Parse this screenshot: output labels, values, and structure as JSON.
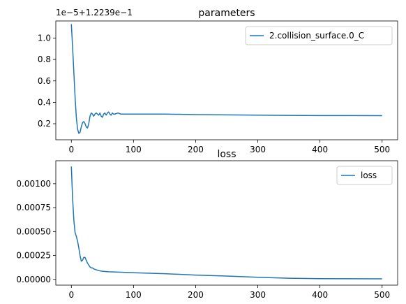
{
  "chart_data": [
    {
      "type": "line",
      "title": "parameters",
      "offset_label": "1e−5+1.2239e−1",
      "xlabel": "",
      "ylabel": "",
      "xlim": [
        -25,
        525
      ],
      "ylim": [
        0.05,
        1.16
      ],
      "x_ticks": [
        0,
        100,
        200,
        300,
        400,
        500
      ],
      "x_tick_labels": [
        "0",
        "100",
        "200",
        "300",
        "400",
        "500"
      ],
      "y_ticks": [
        0.2,
        0.4,
        0.6,
        0.8,
        1.0
      ],
      "y_tick_labels": [
        "0.2",
        "0.4",
        "0.6",
        "0.8",
        "1.0"
      ],
      "legend_position": "top-right",
      "grid": false,
      "series": [
        {
          "name": "2.collision_surface.0_C",
          "color": "#1f77b4",
          "x": [
            0,
            2,
            4,
            6,
            8,
            10,
            12,
            14,
            16,
            18,
            20,
            22,
            24,
            26,
            28,
            30,
            32,
            34,
            36,
            38,
            40,
            42,
            44,
            46,
            48,
            50,
            52,
            54,
            56,
            58,
            60,
            62,
            64,
            66,
            68,
            70,
            75,
            80,
            85,
            90,
            95,
            100,
            150,
            200,
            250,
            300,
            350,
            400,
            450,
            500
          ],
          "y": [
            1.13,
            0.92,
            0.68,
            0.45,
            0.26,
            0.15,
            0.11,
            0.12,
            0.17,
            0.21,
            0.22,
            0.2,
            0.17,
            0.16,
            0.2,
            0.27,
            0.3,
            0.29,
            0.27,
            0.29,
            0.3,
            0.29,
            0.28,
            0.3,
            0.27,
            0.26,
            0.29,
            0.3,
            0.28,
            0.3,
            0.31,
            0.29,
            0.28,
            0.3,
            0.29,
            0.29,
            0.3,
            0.29,
            0.29,
            0.29,
            0.29,
            0.29,
            0.29,
            0.285,
            0.283,
            0.28,
            0.278,
            0.276,
            0.276,
            0.275
          ]
        }
      ]
    },
    {
      "type": "line",
      "title": "loss",
      "xlabel": "",
      "ylabel": "",
      "xlim": [
        -25,
        525
      ],
      "ylim": [
        -6e-05,
        0.00124
      ],
      "x_ticks": [
        0,
        100,
        200,
        300,
        400,
        500
      ],
      "x_tick_labels": [
        "0",
        "100",
        "200",
        "300",
        "400",
        "500"
      ],
      "y_ticks": [
        0,
        0.00025,
        0.0005,
        0.00075,
        0.001
      ],
      "y_tick_labels": [
        "0.00000",
        "0.00025",
        "0.00050",
        "0.00075",
        "0.00100"
      ],
      "legend_position": "top-right",
      "grid": false,
      "series": [
        {
          "name": "loss",
          "color": "#1f77b4",
          "x": [
            0,
            2,
            4,
            6,
            8,
            10,
            12,
            14,
            16,
            18,
            20,
            22,
            24,
            26,
            28,
            30,
            32,
            34,
            36,
            38,
            40,
            45,
            50,
            60,
            80,
            100,
            150,
            200,
            250,
            300,
            350,
            400,
            450,
            500
          ],
          "y": [
            0.00118,
            0.00085,
            0.00062,
            0.00049,
            0.00045,
            0.0004,
            0.00033,
            0.00025,
            0.00019,
            0.0002,
            0.00023,
            0.00023,
            0.0002,
            0.00017,
            0.00015,
            0.00013,
            0.00012,
            0.00012,
            0.00011,
            0.000105,
            0.0001,
            9e-05,
            8.5e-05,
            8e-05,
            7.5e-05,
            7e-05,
            6e-05,
            4.5e-05,
            3.5e-05,
            2.2e-05,
            1.2e-05,
            8e-06,
            7e-06,
            6e-06
          ]
        }
      ]
    }
  ]
}
